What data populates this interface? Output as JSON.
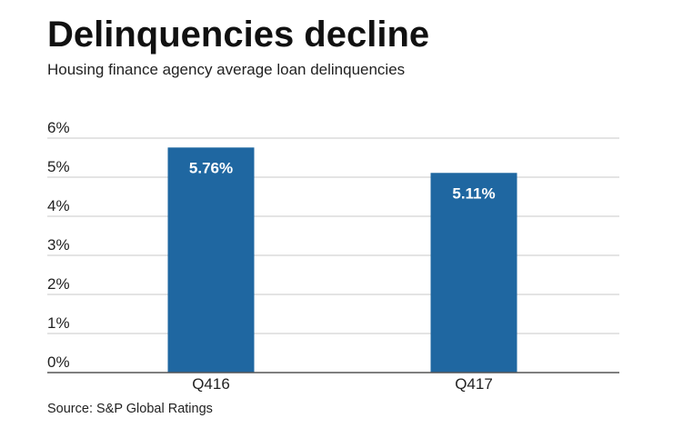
{
  "header": {
    "title": "Delinquencies decline",
    "subtitle": "Housing finance agency average loan delinquencies"
  },
  "footer": {
    "source": "Source: S&P Global Ratings"
  },
  "colors": {
    "bar": "#1f67a1",
    "grid": "#c8c8c8",
    "baseline": "#555555",
    "data_label": "#ffffff"
  },
  "chart_data": {
    "type": "bar",
    "title": "Delinquencies decline",
    "subtitle": "Housing finance agency average loan delinquencies",
    "xlabel": "",
    "ylabel": "",
    "categories": [
      "Q416",
      "Q417"
    ],
    "values": [
      5.76,
      5.11
    ],
    "value_labels": [
      "5.76%",
      "5.11%"
    ],
    "ylim": [
      0,
      6
    ],
    "y_ticks": [
      0,
      1,
      2,
      3,
      4,
      5,
      6
    ],
    "y_tick_labels": [
      "0%",
      "1%",
      "2%",
      "3%",
      "4%",
      "5%",
      "6%"
    ],
    "grid": true,
    "legend": "none"
  }
}
